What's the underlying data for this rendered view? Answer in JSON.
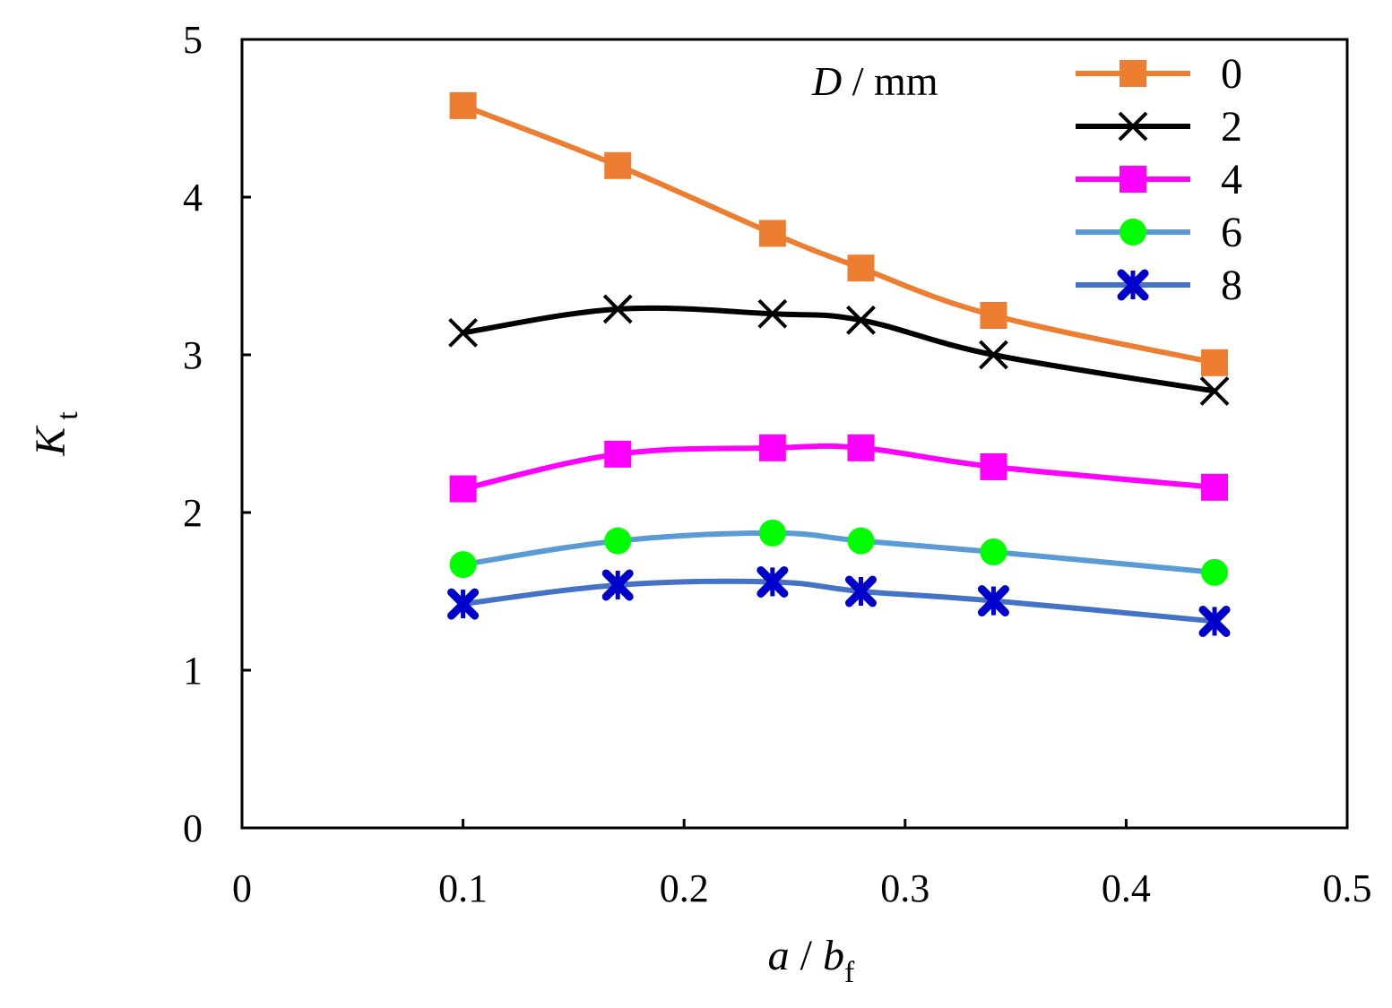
{
  "chart_data": {
    "type": "line",
    "xlabel": {
      "main": "a",
      "sep": " / ",
      "var": "b",
      "sub": "f"
    },
    "ylabel": {
      "main": "K",
      "sub": "t"
    },
    "xlim": [
      0,
      0.5
    ],
    "ylim": [
      0,
      5
    ],
    "xticks": [
      "0",
      "0.1",
      "0.2",
      "0.3",
      "0.4",
      "0.5"
    ],
    "yticks": [
      "0",
      "1",
      "2",
      "3",
      "4",
      "5"
    ],
    "grid": false,
    "legend": {
      "position": "top-right",
      "title_var": "D",
      "title_unit": " / mm"
    },
    "x": [
      0.1,
      0.17,
      0.24,
      0.28,
      0.34,
      0.44
    ],
    "series": [
      {
        "name": "0",
        "line_color": "#ED7D31",
        "marker": "square",
        "marker_color": "#ED7D31",
        "values": [
          4.58,
          4.2,
          3.77,
          3.55,
          3.25,
          2.95
        ]
      },
      {
        "name": "2",
        "line_color": "#000000",
        "marker": "x",
        "marker_color": "#000000",
        "values": [
          3.14,
          3.29,
          3.26,
          3.22,
          3.0,
          2.77
        ]
      },
      {
        "name": "4",
        "line_color": "#FF00FF",
        "marker": "square",
        "marker_color": "#FF00FF",
        "values": [
          2.15,
          2.37,
          2.41,
          2.41,
          2.29,
          2.16
        ]
      },
      {
        "name": "6",
        "line_color": "#5B9BD5",
        "marker": "circle",
        "marker_color": "#00FF00",
        "values": [
          1.67,
          1.82,
          1.87,
          1.82,
          1.75,
          1.62
        ]
      },
      {
        "name": "8",
        "line_color": "#4472C4",
        "marker": "star-x",
        "marker_color": "#0000CC",
        "values": [
          1.42,
          1.54,
          1.56,
          1.5,
          1.44,
          1.31
        ]
      }
    ]
  }
}
